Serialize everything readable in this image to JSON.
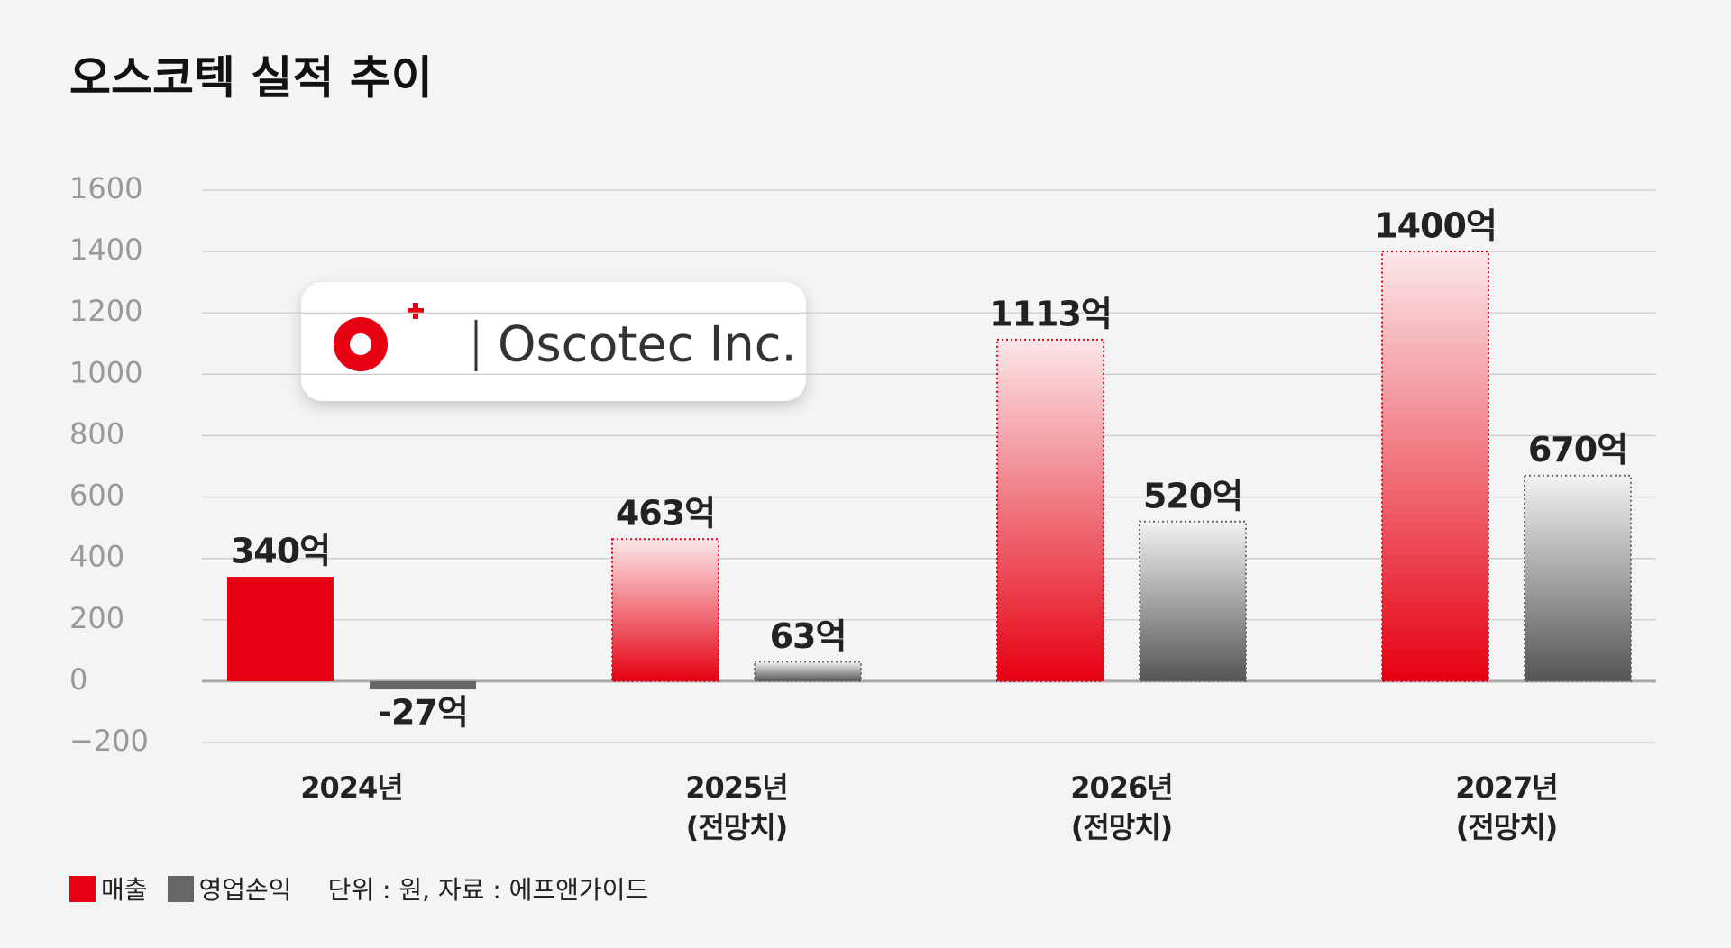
{
  "chart_data": {
    "type": "bar",
    "title": "오스코텍 실적 추이",
    "logo_text": "Oscotec Inc.",
    "categories": [
      "2024년",
      "2025년\n(전망치)",
      "2026년\n(전망치)",
      "2027년\n(전망치)"
    ],
    "series": [
      {
        "name": "매출",
        "color": "#e60012",
        "values": [
          340,
          463,
          1113,
          1400
        ],
        "value_labels": [
          "340억",
          "463억",
          "1113억",
          "1400억"
        ]
      },
      {
        "name": "영업손익",
        "color": "#666666",
        "values": [
          -27,
          63,
          520,
          670
        ],
        "value_labels": [
          "-27억",
          "63억",
          "520억",
          "670억"
        ]
      }
    ],
    "ylim": [
      -200,
      1600
    ],
    "yticks": [
      {
        "value": -200,
        "label": "−200"
      },
      0,
      200,
      400,
      600,
      800,
      1000,
      1200,
      1400,
      1600
    ],
    "grid": true,
    "note": "단위 : 원, 자료 : 에프앤가이드"
  }
}
